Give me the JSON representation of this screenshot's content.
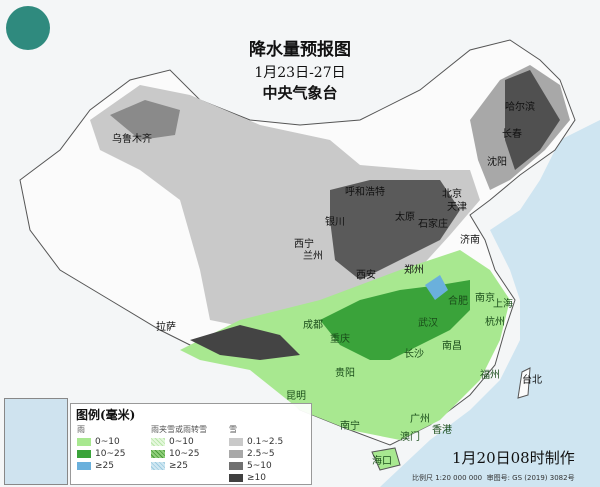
{
  "header": {
    "title": "降水量预报图",
    "date_range": "1月23日-27日",
    "issuer": "中央气象台"
  },
  "colors": {
    "rain_0_10": "#a8e890",
    "rain_10_25": "#3aa33a",
    "rain_ge25": "#6ab0dc",
    "snow_0_1_2_5": "#c9c9c9",
    "snow_2_5_5": "#a8a8a8",
    "snow_5_10": "#707070",
    "snow_ge10": "#404040",
    "ocean": "#cfe5f1"
  },
  "cities": [
    {
      "name": "乌鲁木齐"
    },
    {
      "name": "哈尔滨"
    },
    {
      "name": "长春"
    },
    {
      "name": "沈阳"
    },
    {
      "name": "呼和浩特"
    },
    {
      "name": "北京"
    },
    {
      "name": "天津"
    },
    {
      "name": "银川"
    },
    {
      "name": "太原"
    },
    {
      "name": "石家庄"
    },
    {
      "name": "济南"
    },
    {
      "name": "西宁"
    },
    {
      "name": "兰州"
    },
    {
      "name": "西安"
    },
    {
      "name": "郑州"
    },
    {
      "name": "合肥"
    },
    {
      "name": "南京"
    },
    {
      "name": "上海"
    },
    {
      "name": "杭州"
    },
    {
      "name": "武汉"
    },
    {
      "name": "成都"
    },
    {
      "name": "重庆"
    },
    {
      "name": "拉萨"
    },
    {
      "name": "长沙"
    },
    {
      "name": "南昌"
    },
    {
      "name": "福州"
    },
    {
      "name": "台北"
    },
    {
      "name": "贵阳"
    },
    {
      "name": "昆明"
    },
    {
      "name": "南宁"
    },
    {
      "name": "广州"
    },
    {
      "name": "澳门"
    },
    {
      "name": "香港"
    },
    {
      "name": "海口"
    }
  ],
  "legend": {
    "title": "图例(毫米)",
    "rain_header": "雨",
    "mixed_header": "雨夹雪或雨转雪",
    "snow_header": "雪",
    "rain": [
      "0~10",
      "10~25",
      "≥25"
    ],
    "mixed": [
      "0~10",
      "10~25",
      "≥25"
    ],
    "snow": [
      "0.1~2.5",
      "2.5~5",
      "5~10",
      "≥10"
    ]
  },
  "footer": {
    "issued": "1月20日08时制作",
    "scale": "比例尺 1:20 000 000",
    "map_no": "审图号: GS (2019) 3082号"
  }
}
